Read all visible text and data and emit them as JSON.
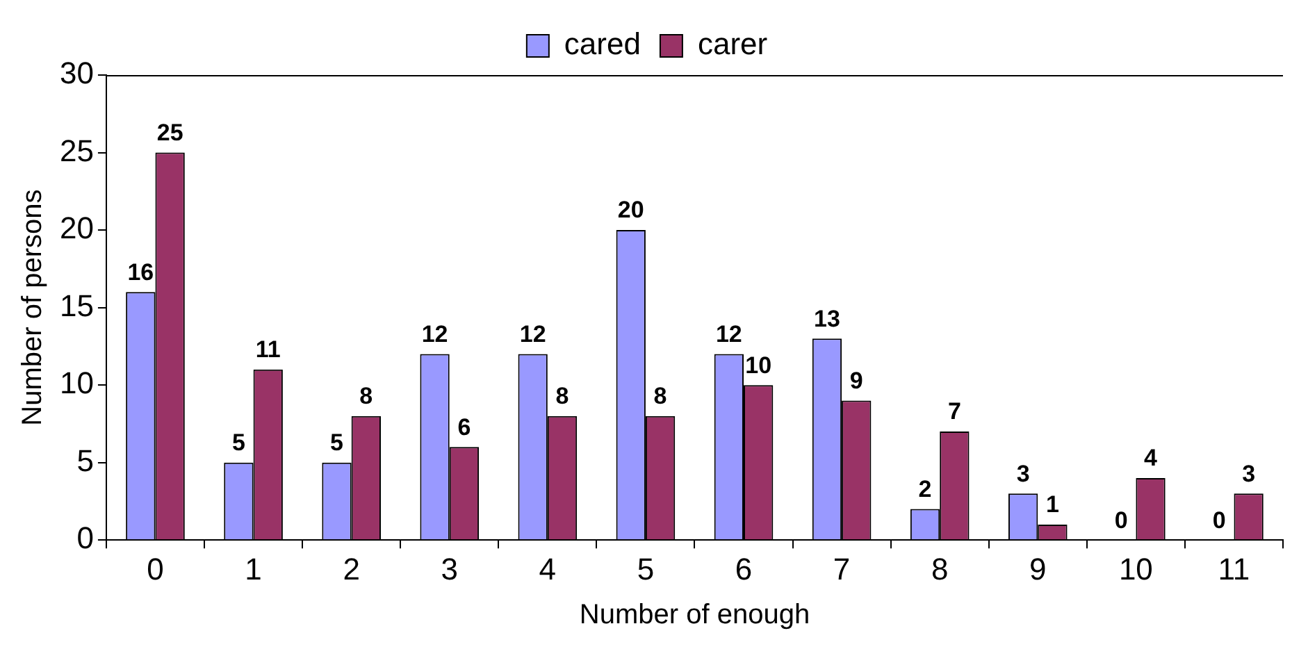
{
  "chart_data": {
    "type": "bar",
    "xlabel": "Number of enough",
    "ylabel": "Number of persons",
    "categories": [
      "0",
      "1",
      "2",
      "3",
      "4",
      "5",
      "6",
      "7",
      "8",
      "9",
      "10",
      "11"
    ],
    "series": [
      {
        "name": "cared",
        "color": "#9999ff",
        "values": [
          16,
          5,
          5,
          12,
          12,
          20,
          12,
          13,
          2,
          3,
          0,
          0
        ]
      },
      {
        "name": "carer",
        "color": "#993366",
        "values": [
          25,
          11,
          8,
          6,
          8,
          8,
          10,
          9,
          7,
          1,
          4,
          3
        ]
      }
    ],
    "ylim": [
      0,
      30
    ],
    "yticks": [
      0,
      5,
      10,
      15,
      20,
      25,
      30
    ],
    "grid": false,
    "legend": "top",
    "data_labels": true
  }
}
